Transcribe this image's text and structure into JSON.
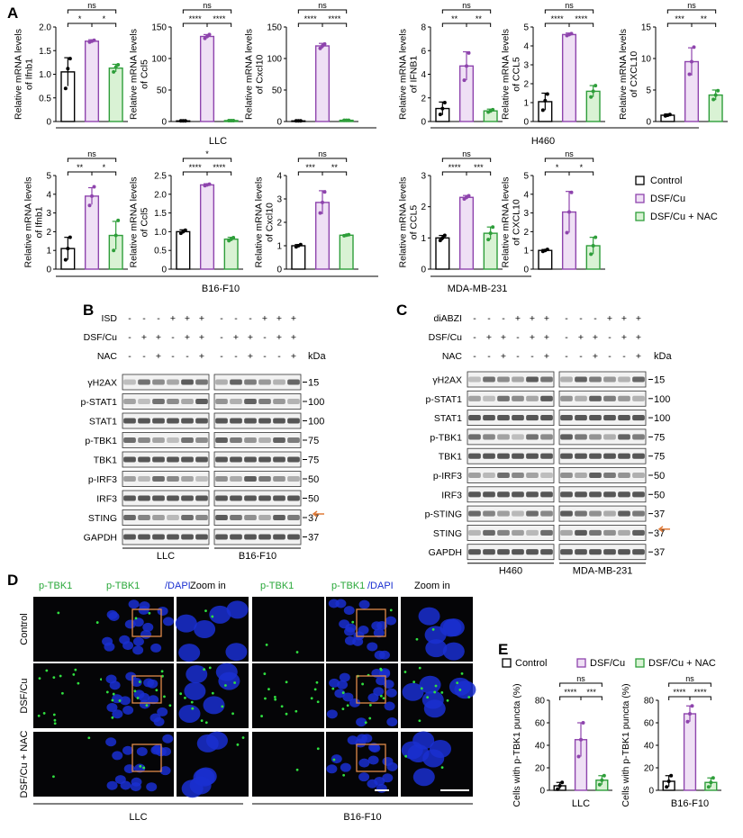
{
  "panels": {
    "A": {
      "letter": "A",
      "legend": {
        "items": [
          "Control",
          "DSF/Cu",
          "DSF/Cu + NAC"
        ]
      },
      "groups": [
        {
          "label": "LLC",
          "charts": [
            0,
            1,
            2
          ]
        },
        {
          "label": "H460",
          "charts": [
            3,
            4,
            5
          ]
        },
        {
          "label": "B16-F10",
          "charts": [
            6,
            7,
            8
          ]
        },
        {
          "label": "MDA-MB-231",
          "charts": [
            9,
            10
          ]
        }
      ]
    },
    "B": {
      "letter": "B",
      "rows_top": [
        "ISD",
        "DSF/Cu",
        "NAC"
      ],
      "signs": {
        "ISD": [
          "-",
          "-",
          "-",
          "+",
          "+",
          "+",
          "-",
          "-",
          "-",
          "+",
          "+",
          "+"
        ],
        "DSF/Cu": [
          "-",
          "+",
          "+",
          "-",
          "+",
          "+",
          "-",
          "+",
          "+",
          "-",
          "+",
          "+"
        ],
        "NAC": [
          "-",
          "-",
          "+",
          "-",
          "-",
          "+",
          "-",
          "-",
          "+",
          "-",
          "-",
          "+"
        ]
      },
      "blots": [
        "γH2AX",
        "p-STAT1",
        "STAT1",
        "p-TBK1",
        "TBK1",
        "p-IRF3",
        "IRF3",
        "STING",
        "GAPDH"
      ],
      "kda": [
        "15",
        "100",
        "100",
        "75",
        "75",
        "50",
        "50",
        "37",
        "37"
      ],
      "kda_label": "kDa",
      "groups": [
        "LLC",
        "B16-F10"
      ]
    },
    "C": {
      "letter": "C",
      "rows_top": [
        "diABZI",
        "DSF/Cu",
        "NAC"
      ],
      "signs": {
        "diABZI": [
          "-",
          "-",
          "-",
          "+",
          "+",
          "+",
          "-",
          "-",
          "-",
          "+",
          "+",
          "+"
        ],
        "DSF/Cu": [
          "-",
          "+",
          "+",
          "-",
          "+",
          "+",
          "-",
          "+",
          "+",
          "-",
          "+",
          "+"
        ],
        "NAC": [
          "-",
          "-",
          "+",
          "-",
          "-",
          "+",
          "-",
          "-",
          "+",
          "-",
          "-",
          "+"
        ]
      },
      "blots": [
        "γH2AX",
        "p-STAT1",
        "STAT1",
        "p-TBK1",
        "TBK1",
        "p-IRF3",
        "IRF3",
        "p-STING",
        "STING",
        "GAPDH"
      ],
      "kda": [
        "15",
        "100",
        "100",
        "75",
        "75",
        "50",
        "50",
        "37",
        "37",
        "37"
      ],
      "kda_label": "kDa",
      "groups": [
        "H460",
        "MDA-MB-231"
      ]
    },
    "D": {
      "letter": "D",
      "col_headers": [
        "p-TBK1",
        "p-TBK1",
        "/DAPI",
        "Zoom in",
        "p-TBK1",
        "p-TBK1",
        "/DAPI",
        "Zoom in"
      ],
      "row_labels": [
        "Control",
        "DSF/Cu",
        "DSF/Cu + NAC"
      ],
      "groups": [
        "LLC",
        "B16-F10"
      ]
    },
    "E": {
      "letter": "E",
      "legend": [
        "Control",
        "DSF/Cu",
        "DSF/Cu + NAC"
      ]
    }
  },
  "colors": {
    "control": "#000000",
    "dsf": "#8e44ad",
    "nac": "#2e9e3a",
    "dsf_fill": "#efe0f5",
    "nac_fill": "#d9f2d4",
    "ctrl_fill": "#ffffff",
    "micro_bg": "#050507",
    "dapi": "#1a2fd0",
    "ptbk1": "#30e040",
    "zoom_box": "#e08a4a",
    "arrow": "#e07b39"
  },
  "chart_data": [
    {
      "type": "bar",
      "ylabel": "Relative mRNA levels of Ifnb1",
      "ylim": [
        0,
        2.0
      ],
      "yticks": [
        0,
        0.5,
        1.0,
        1.5,
        2.0
      ],
      "tick_labels": [
        "0",
        "0.5",
        "1.0",
        "1.5",
        "2.0"
      ],
      "categories": [
        "Control",
        "DSF/Cu",
        "DSF/Cu + NAC"
      ],
      "values": [
        1.05,
        1.7,
        1.13
      ],
      "errors": [
        0.3,
        0.03,
        0.08
      ],
      "points": [
        [
          0.7,
          1.12,
          1.33
        ],
        [
          1.68,
          1.7,
          1.72
        ],
        [
          1.05,
          1.15,
          1.2
        ]
      ],
      "significance": [
        {
          "from": 0,
          "to": 1,
          "label": "*",
          "level": 1
        },
        {
          "from": 1,
          "to": 2,
          "label": "*",
          "level": 1
        },
        {
          "from": 0,
          "to": 2,
          "label": "ns",
          "level": 2
        }
      ]
    },
    {
      "type": "bar",
      "ylabel": "Relative mRNA levels of Ccl5",
      "ylim": [
        0,
        150
      ],
      "yticks": [
        0,
        50,
        100,
        150
      ],
      "tick_labels": [
        "0",
        "50",
        "100",
        "150"
      ],
      "categories": [
        "Control",
        "DSF/Cu",
        "DSF/Cu + NAC"
      ],
      "values": [
        1,
        135,
        1.5
      ],
      "errors": [
        0.3,
        3,
        0.3
      ],
      "points": [
        [
          1,
          1,
          1
        ],
        [
          132,
          135,
          138
        ],
        [
          1.5,
          1.5,
          1.5
        ]
      ],
      "significance": [
        {
          "from": 0,
          "to": 1,
          "label": "****",
          "level": 1
        },
        {
          "from": 1,
          "to": 2,
          "label": "****",
          "level": 1
        },
        {
          "from": 0,
          "to": 2,
          "label": "ns",
          "level": 2
        }
      ]
    },
    {
      "type": "bar",
      "ylabel": "Relative mRNA levels of Cxcl10",
      "ylim": [
        0,
        150
      ],
      "yticks": [
        0,
        50,
        100,
        150
      ],
      "tick_labels": [
        "0",
        "50",
        "100",
        "150"
      ],
      "categories": [
        "Control",
        "DSF/Cu",
        "DSF/Cu + NAC"
      ],
      "values": [
        1,
        120,
        2
      ],
      "errors": [
        0.3,
        4,
        0.3
      ],
      "points": [
        [
          1,
          1,
          1
        ],
        [
          116,
          120,
          123
        ],
        [
          2,
          2,
          2
        ]
      ],
      "significance": [
        {
          "from": 0,
          "to": 1,
          "label": "****",
          "level": 1
        },
        {
          "from": 1,
          "to": 2,
          "label": "****",
          "level": 1
        },
        {
          "from": 0,
          "to": 2,
          "label": "ns",
          "level": 2
        }
      ]
    },
    {
      "type": "bar",
      "ylabel": "Relative mRNA levels of IFNB1",
      "ylim": [
        0,
        8
      ],
      "yticks": [
        0,
        2,
        4,
        6,
        8
      ],
      "tick_labels": [
        "0",
        "2",
        "4",
        "6",
        "8"
      ],
      "categories": [
        "Control",
        "DSF/Cu",
        "DSF/Cu + NAC"
      ],
      "values": [
        1.1,
        4.7,
        0.9
      ],
      "errors": [
        0.55,
        1.2,
        0.15
      ],
      "points": [
        [
          0.6,
          1.1,
          1.6
        ],
        [
          3.5,
          4.7,
          5.8
        ],
        [
          0.8,
          0.9,
          1.0
        ]
      ],
      "significance": [
        {
          "from": 0,
          "to": 1,
          "label": "**",
          "level": 1
        },
        {
          "from": 1,
          "to": 2,
          "label": "**",
          "level": 1
        },
        {
          "from": 0,
          "to": 2,
          "label": "ns",
          "level": 2
        }
      ]
    },
    {
      "type": "bar",
      "ylabel": "Relative mRNA levels of CCL5",
      "ylim": [
        0,
        5
      ],
      "yticks": [
        0,
        1,
        2,
        3,
        4,
        5
      ],
      "tick_labels": [
        "0",
        "1",
        "2",
        "3",
        "4",
        "5"
      ],
      "categories": [
        "Control",
        "DSF/Cu",
        "DSF/Cu + NAC"
      ],
      "values": [
        1.05,
        4.6,
        1.6
      ],
      "errors": [
        0.45,
        0.08,
        0.3
      ],
      "points": [
        [
          0.6,
          1.1,
          1.45
        ],
        [
          4.55,
          4.6,
          4.65
        ],
        [
          1.3,
          1.6,
          1.9
        ]
      ],
      "significance": [
        {
          "from": 0,
          "to": 1,
          "label": "****",
          "level": 1
        },
        {
          "from": 1,
          "to": 2,
          "label": "****",
          "level": 1
        },
        {
          "from": 0,
          "to": 2,
          "label": "ns",
          "level": 2
        }
      ]
    },
    {
      "type": "bar",
      "ylabel": "Relative mRNA levels of CXCL10",
      "ylim": [
        0,
        15
      ],
      "yticks": [
        0,
        5,
        10,
        15
      ],
      "tick_labels": [
        "0",
        "5",
        "10",
        "15"
      ],
      "categories": [
        "Control",
        "DSF/Cu",
        "DSF/Cu + NAC"
      ],
      "values": [
        1,
        9.5,
        4.2
      ],
      "errors": [
        0.2,
        2.2,
        0.8
      ],
      "points": [
        [
          0.9,
          1,
          1.1
        ],
        [
          7.5,
          9.5,
          11.8
        ],
        [
          3.5,
          4.2,
          4.9
        ]
      ],
      "significance": [
        {
          "from": 0,
          "to": 1,
          "label": "***",
          "level": 1
        },
        {
          "from": 1,
          "to": 2,
          "label": "**",
          "level": 1
        },
        {
          "from": 0,
          "to": 2,
          "label": "ns",
          "level": 2
        }
      ]
    },
    {
      "type": "bar",
      "ylabel": "Relative mRNA levels of Ifnb1",
      "ylim": [
        0,
        5
      ],
      "yticks": [
        0,
        1,
        2,
        3,
        4,
        5
      ],
      "tick_labels": [
        "0",
        "1",
        "2",
        "3",
        "4",
        "5"
      ],
      "categories": [
        "Control",
        "DSF/Cu",
        "DSF/Cu + NAC"
      ],
      "values": [
        1.1,
        3.9,
        1.8
      ],
      "errors": [
        0.6,
        0.45,
        0.75
      ],
      "points": [
        [
          0.5,
          1.1,
          1.7
        ],
        [
          3.4,
          3.9,
          4.4
        ],
        [
          1.0,
          1.8,
          2.6
        ]
      ],
      "significance": [
        {
          "from": 0,
          "to": 1,
          "label": "**",
          "level": 1
        },
        {
          "from": 1,
          "to": 2,
          "label": "*",
          "level": 1
        },
        {
          "from": 0,
          "to": 2,
          "label": "ns",
          "level": 2
        }
      ]
    },
    {
      "type": "bar",
      "ylabel": "Relative mRNA levels of Ccl5",
      "ylim": [
        0,
        2.5
      ],
      "yticks": [
        0,
        0.5,
        1.0,
        1.5,
        2.0,
        2.5
      ],
      "tick_labels": [
        "0",
        "0.5",
        "1.0",
        "1.5",
        "2.0",
        "2.5"
      ],
      "categories": [
        "Control",
        "DSF/Cu",
        "DSF/Cu + NAC"
      ],
      "values": [
        1.0,
        2.25,
        0.8
      ],
      "errors": [
        0.05,
        0.03,
        0.05
      ],
      "points": [
        [
          0.96,
          1.0,
          1.04
        ],
        [
          2.23,
          2.25,
          2.27
        ],
        [
          0.76,
          0.8,
          0.84
        ]
      ],
      "significance": [
        {
          "from": 0,
          "to": 1,
          "label": "****",
          "level": 1
        },
        {
          "from": 1,
          "to": 2,
          "label": "****",
          "level": 1
        },
        {
          "from": 0,
          "to": 2,
          "label": "*",
          "level": 2
        }
      ]
    },
    {
      "type": "bar",
      "ylabel": "Relative mRNA levels of Cxcl10",
      "ylim": [
        0,
        4
      ],
      "yticks": [
        0,
        1,
        2,
        3,
        4
      ],
      "tick_labels": [
        "0",
        "1",
        "2",
        "3",
        "4"
      ],
      "categories": [
        "Control",
        "DSF/Cu",
        "DSF/Cu + NAC"
      ],
      "values": [
        1.0,
        2.85,
        1.45
      ],
      "errors": [
        0.05,
        0.5,
        0.02
      ],
      "points": [
        [
          0.95,
          1.0,
          1.05
        ],
        [
          2.4,
          2.85,
          3.3
        ],
        [
          1.43,
          1.45,
          1.47
        ]
      ],
      "significance": [
        {
          "from": 0,
          "to": 1,
          "label": "***",
          "level": 1
        },
        {
          "from": 1,
          "to": 2,
          "label": "**",
          "level": 1
        },
        {
          "from": 0,
          "to": 2,
          "label": "ns",
          "level": 2
        }
      ]
    },
    {
      "type": "bar",
      "ylabel": "Relative mRNA levels of CCL5",
      "ylim": [
        0,
        3
      ],
      "yticks": [
        0,
        1,
        2,
        3
      ],
      "tick_labels": [
        "0",
        "1",
        "2",
        "3"
      ],
      "categories": [
        "Control",
        "DSF/Cu",
        "DSF/Cu + NAC"
      ],
      "values": [
        1.0,
        2.3,
        1.15
      ],
      "errors": [
        0.08,
        0.06,
        0.2
      ],
      "points": [
        [
          0.92,
          1.0,
          1.08
        ],
        [
          2.25,
          2.3,
          2.35
        ],
        [
          0.95,
          1.15,
          1.35
        ]
      ],
      "significance": [
        {
          "from": 0,
          "to": 1,
          "label": "****",
          "level": 1
        },
        {
          "from": 1,
          "to": 2,
          "label": "***",
          "level": 1
        },
        {
          "from": 0,
          "to": 2,
          "label": "ns",
          "level": 2
        }
      ]
    },
    {
      "type": "bar",
      "ylabel": "Relative mRNA levels of CXCL10",
      "ylim": [
        0,
        5
      ],
      "yticks": [
        0,
        1,
        2,
        3,
        4,
        5
      ],
      "tick_labels": [
        "0",
        "1",
        "2",
        "3",
        "4",
        "5"
      ],
      "categories": [
        "Control",
        "DSF/Cu",
        "DSF/Cu + NAC"
      ],
      "values": [
        1.0,
        3.05,
        1.25
      ],
      "errors": [
        0.05,
        1.1,
        0.45
      ],
      "points": [
        [
          0.95,
          1.0,
          1.05
        ],
        [
          1.95,
          3.05,
          4.1
        ],
        [
          0.8,
          1.25,
          1.7
        ]
      ],
      "significance": [
        {
          "from": 0,
          "to": 1,
          "label": "*",
          "level": 1
        },
        {
          "from": 1,
          "to": 2,
          "label": "*",
          "level": 1
        },
        {
          "from": 0,
          "to": 2,
          "label": "ns",
          "level": 2
        }
      ]
    },
    {
      "type": "bar",
      "ylabel": "Cells with p-TBK1 puncta (%)",
      "xlabel": "LLC",
      "ylim": [
        0,
        80
      ],
      "yticks": [
        0,
        20,
        40,
        60,
        80
      ],
      "tick_labels": [
        "0",
        "20",
        "40",
        "60",
        "80"
      ],
      "categories": [
        "Control",
        "DSF/Cu",
        "DSF/Cu + NAC"
      ],
      "values": [
        4,
        45,
        9
      ],
      "errors": [
        3,
        15,
        4
      ],
      "points": [
        [
          1,
          4,
          7
        ],
        [
          30,
          45,
          60
        ],
        [
          5,
          9,
          13
        ]
      ],
      "significance": [
        {
          "from": 0,
          "to": 1,
          "label": "****",
          "level": 1
        },
        {
          "from": 1,
          "to": 2,
          "label": "***",
          "level": 1
        },
        {
          "from": 0,
          "to": 2,
          "label": "ns",
          "level": 2
        }
      ]
    },
    {
      "type": "bar",
      "ylabel": "Cells with p-TBK1 puncta (%)",
      "xlabel": "B16-F10",
      "ylim": [
        0,
        80
      ],
      "yticks": [
        0,
        20,
        40,
        60,
        80
      ],
      "tick_labels": [
        "0",
        "20",
        "40",
        "60",
        "80"
      ],
      "categories": [
        "Control",
        "DSF/Cu",
        "DSF/Cu + NAC"
      ],
      "values": [
        8,
        68,
        7
      ],
      "errors": [
        5,
        7,
        4
      ],
      "points": [
        [
          3,
          8,
          13
        ],
        [
          61,
          68,
          75
        ],
        [
          3,
          7,
          11
        ]
      ],
      "significance": [
        {
          "from": 0,
          "to": 1,
          "label": "****",
          "level": 1
        },
        {
          "from": 1,
          "to": 2,
          "label": "****",
          "level": 1
        },
        {
          "from": 0,
          "to": 2,
          "label": "ns",
          "level": 2
        }
      ]
    }
  ]
}
